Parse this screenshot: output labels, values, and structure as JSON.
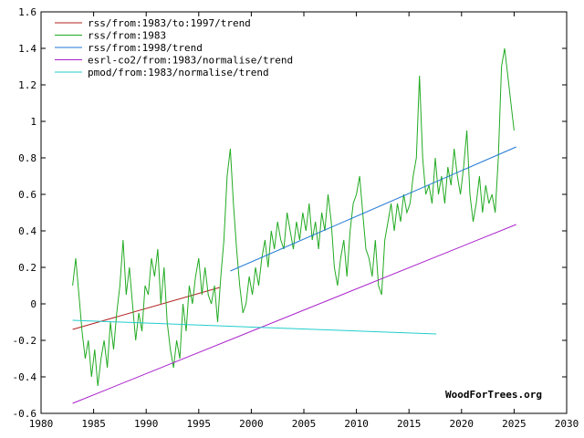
{
  "chart_data": {
    "type": "line",
    "title": "",
    "xlabel": "",
    "ylabel": "",
    "xlim": [
      1980,
      2030
    ],
    "ylim": [
      -0.6,
      1.6
    ],
    "x_ticks": [
      "1980",
      "1985",
      "1990",
      "1995",
      "2000",
      "2005",
      "2010",
      "2015",
      "2020",
      "2025",
      "2030"
    ],
    "y_ticks": [
      "-0.6",
      "-0.4",
      "-0.2",
      "0",
      "0.2",
      "0.4",
      "0.6",
      "0.8",
      "1",
      "1.2",
      "1.4",
      "1.6"
    ],
    "grid": false,
    "legend_position": "top-left",
    "watermark": "WoodForTrees.org",
    "series": [
      {
        "name": "rss/from:1983/to:1997/trend",
        "color": "#b22222",
        "x": [
          1983.0,
          1997.0
        ],
        "y": [
          -0.14,
          0.09
        ]
      },
      {
        "name": "rss/from:1983",
        "color": "#22aa22",
        "x": [
          1983.0,
          1983.3,
          1983.6,
          1983.9,
          1984.2,
          1984.5,
          1984.8,
          1985.1,
          1985.4,
          1985.7,
          1986.0,
          1986.3,
          1986.6,
          1986.9,
          1987.2,
          1987.5,
          1987.8,
          1988.1,
          1988.4,
          1988.7,
          1989.0,
          1989.3,
          1989.6,
          1989.9,
          1990.2,
          1990.5,
          1990.8,
          1991.1,
          1991.4,
          1991.7,
          1992.0,
          1992.3,
          1992.6,
          1992.9,
          1993.2,
          1993.5,
          1993.8,
          1994.1,
          1994.4,
          1994.7,
          1995.0,
          1995.3,
          1995.6,
          1995.9,
          1996.2,
          1996.5,
          1996.8,
          1997.1,
          1997.4,
          1997.7,
          1998.0,
          1998.3,
          1998.6,
          1998.9,
          1999.2,
          1999.5,
          1999.8,
          2000.1,
          2000.4,
          2000.7,
          2001.0,
          2001.3,
          2001.6,
          2001.9,
          2002.2,
          2002.5,
          2002.8,
          2003.1,
          2003.4,
          2003.7,
          2004.0,
          2004.3,
          2004.6,
          2004.9,
          2005.2,
          2005.5,
          2005.8,
          2006.1,
          2006.4,
          2006.7,
          2007.0,
          2007.3,
          2007.6,
          2007.9,
          2008.2,
          2008.5,
          2008.8,
          2009.1,
          2009.4,
          2009.7,
          2010.0,
          2010.3,
          2010.6,
          2010.9,
          2011.2,
          2011.5,
          2011.8,
          2012.1,
          2012.4,
          2012.7,
          2013.0,
          2013.3,
          2013.6,
          2013.9,
          2014.2,
          2014.5,
          2014.8,
          2015.1,
          2015.4,
          2015.7,
          2016.0,
          2016.3,
          2016.6,
          2016.9,
          2017.2,
          2017.5,
          2017.8,
          2018.1,
          2018.4,
          2018.7,
          2019.0,
          2019.3,
          2019.6,
          2019.9,
          2020.2,
          2020.5,
          2020.8,
          2021.1,
          2021.4,
          2021.7,
          2022.0,
          2022.3,
          2022.6,
          2022.9,
          2023.2,
          2023.5,
          2023.8,
          2024.1,
          2024.4,
          2024.7,
          2025.0
        ],
        "y": [
          0.1,
          0.25,
          0.05,
          -0.15,
          -0.3,
          -0.2,
          -0.4,
          -0.25,
          -0.45,
          -0.3,
          -0.2,
          -0.35,
          -0.1,
          -0.25,
          -0.05,
          0.1,
          0.35,
          0.05,
          0.2,
          0.0,
          -0.2,
          -0.05,
          -0.15,
          0.1,
          0.05,
          0.25,
          0.15,
          0.3,
          0.0,
          0.2,
          -0.1,
          -0.25,
          -0.35,
          -0.2,
          -0.3,
          0.0,
          -0.15,
          0.1,
          0.0,
          0.15,
          0.25,
          0.05,
          0.2,
          0.05,
          0.0,
          0.1,
          -0.1,
          0.15,
          0.35,
          0.7,
          0.85,
          0.55,
          0.3,
          0.1,
          -0.05,
          0.0,
          0.15,
          0.05,
          0.2,
          0.1,
          0.25,
          0.35,
          0.2,
          0.4,
          0.3,
          0.45,
          0.35,
          0.3,
          0.5,
          0.4,
          0.3,
          0.45,
          0.35,
          0.5,
          0.4,
          0.55,
          0.35,
          0.45,
          0.3,
          0.5,
          0.4,
          0.6,
          0.45,
          0.2,
          0.1,
          0.25,
          0.35,
          0.15,
          0.4,
          0.55,
          0.6,
          0.7,
          0.5,
          0.3,
          0.25,
          0.15,
          0.35,
          0.1,
          0.05,
          0.35,
          0.45,
          0.55,
          0.4,
          0.55,
          0.45,
          0.6,
          0.5,
          0.55,
          0.7,
          0.8,
          1.25,
          0.8,
          0.6,
          0.65,
          0.55,
          0.8,
          0.6,
          0.7,
          0.55,
          0.75,
          0.65,
          0.85,
          0.7,
          0.6,
          0.75,
          0.95,
          0.6,
          0.45,
          0.55,
          0.7,
          0.5,
          0.65,
          0.55,
          0.6,
          0.5,
          0.8,
          1.3,
          1.4,
          1.25,
          1.1,
          0.95
        ]
      },
      {
        "name": "rss/from:1998/trend",
        "color": "#1f77d4",
        "x": [
          1998.0,
          2025.2
        ],
        "y": [
          0.18,
          0.86
        ]
      },
      {
        "name": "esrl-co2/from:1983/normalise/trend",
        "color": "#aa22cc",
        "x": [
          1983.0,
          2025.2
        ],
        "y": [
          -0.545,
          0.435
        ]
      },
      {
        "name": "pmod/from:1983/normalise/trend",
        "color": "#22cccc",
        "x": [
          1983.0,
          2017.6
        ],
        "y": [
          -0.09,
          -0.165
        ]
      }
    ]
  }
}
